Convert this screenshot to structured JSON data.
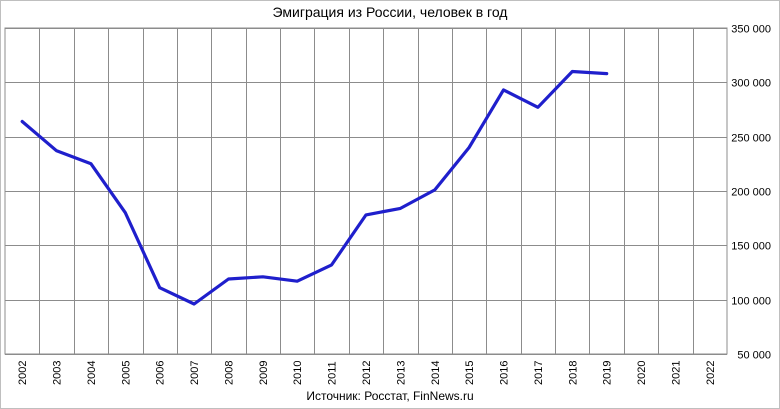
{
  "chart_data": {
    "type": "line",
    "title": "Эмиграция из России, человек в год",
    "source": "Источник: Росстат, FinNews.ru",
    "xlabel": "",
    "ylabel": "",
    "categories": [
      "2002",
      "2003",
      "2004",
      "2005",
      "2006",
      "2007",
      "2008",
      "2009",
      "2010",
      "2011",
      "2012",
      "2013",
      "2014",
      "2015",
      "2016",
      "2017",
      "2018",
      "2019",
      "2020",
      "2021",
      "2022"
    ],
    "y_tick_labels": [
      "350 000",
      "300 000",
      "250 000",
      "200 000",
      "150 000",
      "100 000",
      "50 000"
    ],
    "y_ticks": [
      350000,
      300000,
      250000,
      200000,
      150000,
      100000,
      50000
    ],
    "ylim": [
      50000,
      350000
    ],
    "grid": true,
    "y_axis_side": "right",
    "x_label_orientation": "vertical",
    "series": [
      {
        "color": "#1f1fcc",
        "values": [
          264000,
          237000,
          225000,
          180000,
          111000,
          96000,
          119000,
          121000,
          117000,
          132000,
          178000,
          184000,
          201000,
          240000,
          293000,
          277000,
          310000,
          308000,
          null,
          null,
          null
        ]
      }
    ]
  }
}
